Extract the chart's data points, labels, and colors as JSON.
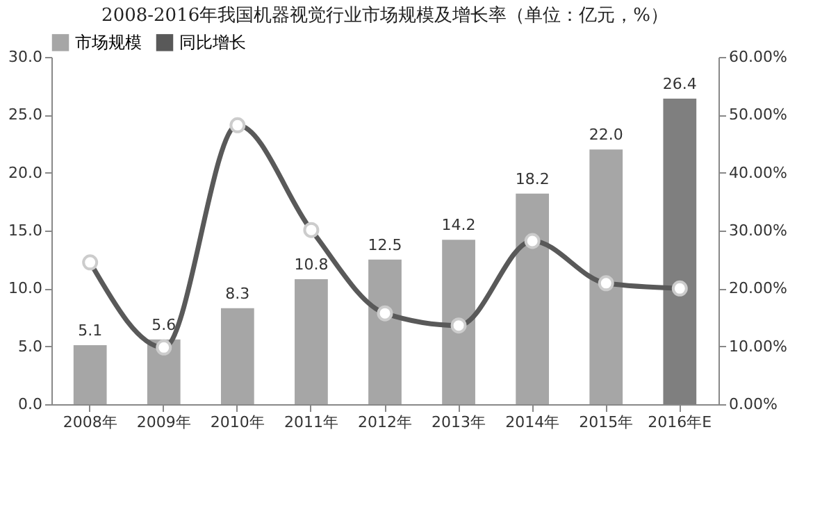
{
  "chart_data": {
    "type": "bar",
    "title": "2008-2016年我国机器视觉行业市场规模及增长率（单位：亿元，%）",
    "categories": [
      "2008年",
      "2009年",
      "2010年",
      "2011年",
      "2012年",
      "2013年",
      "2014年",
      "2015年",
      "2016年E"
    ],
    "series": [
      {
        "name": "市场规模",
        "color": "#a6a6a6",
        "colors": [
          "#a6a6a6",
          "#a6a6a6",
          "#a6a6a6",
          "#a6a6a6",
          "#a6a6a6",
          "#a6a6a6",
          "#a6a6a6",
          "#a6a6a6",
          "#7f7f7f"
        ],
        "values": [
          5.1,
          5.6,
          8.3,
          10.8,
          12.5,
          14.2,
          18.2,
          22.0,
          26.4
        ],
        "value_labels": [
          "5.1",
          "5.6",
          "8.3",
          "10.8",
          "12.5",
          "14.2",
          "18.2",
          "22.0",
          "26.4"
        ]
      },
      {
        "name": "同比增长",
        "type": "line",
        "axis": "y2",
        "color": "#595959",
        "values": [
          24.5,
          9.8,
          48.2,
          30.1,
          15.7,
          13.6,
          28.2,
          20.9,
          20.0
        ]
      }
    ],
    "ylim": [
      0,
      30
    ],
    "yticks": [
      {
        "value": 0,
        "label": "0.0"
      },
      {
        "value": 5,
        "label": "5.0"
      },
      {
        "value": 10,
        "label": "10.0"
      },
      {
        "value": 15,
        "label": "15.0"
      },
      {
        "value": 20,
        "label": "20.0"
      },
      {
        "value": 25,
        "label": "25.0"
      },
      {
        "value": 30,
        "label": "30.0"
      }
    ],
    "y2lim": [
      0,
      60
    ],
    "y2ticks": [
      {
        "value": 0,
        "label": "0.00%"
      },
      {
        "value": 10,
        "label": "10.00%"
      },
      {
        "value": 20,
        "label": "20.00%"
      },
      {
        "value": 30,
        "label": "30.00%"
      },
      {
        "value": 40,
        "label": "40.00%"
      },
      {
        "value": 50,
        "label": "50.00%"
      },
      {
        "value": 60,
        "label": "60.00%"
      }
    ],
    "legend": "top",
    "marker": "circle",
    "grid": false
  }
}
